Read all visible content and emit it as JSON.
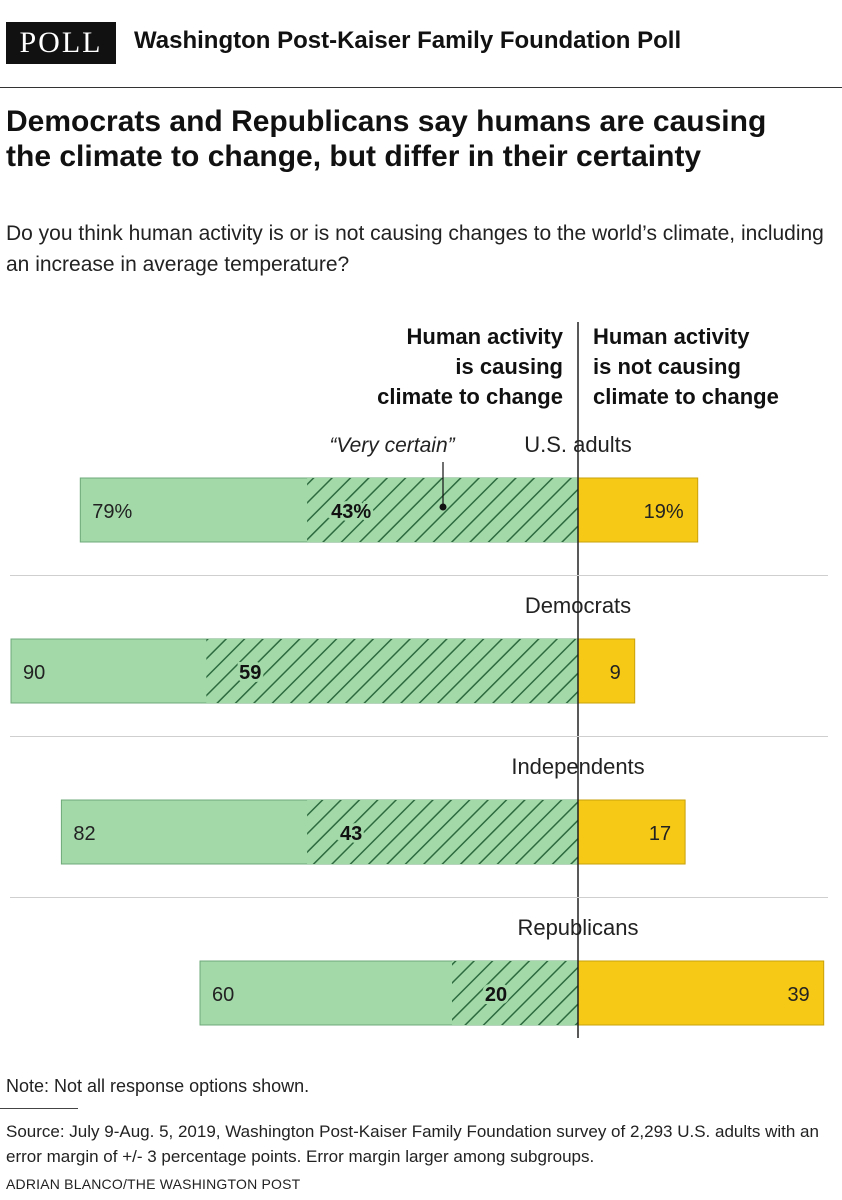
{
  "header": {
    "badge": "POLL",
    "title": "Washington Post-Kaiser Family Foundation Poll"
  },
  "headline": "Democrats and Republicans say humans are causing the climate to change, but differ in their certainty",
  "subhead": "Do you think human activity is or is not causing changes to the world’s climate, including an increase in average temperature?",
  "column_headers": {
    "left": "Human activity\nis causing\nclimate to change",
    "right": "Human activity\nis not causing\nclimate to change"
  },
  "annotation": "“Very certain”",
  "colors": {
    "causing": "#a3d9a9",
    "causing_border": "#6fa879",
    "hatch": "#2d6b3f",
    "not_causing": "#f5c915",
    "not_causing_border": "#c9a10a",
    "axis": "#222222"
  },
  "chart_data": {
    "type": "bar",
    "orientation": "horizontal-diverging",
    "categories": [
      "U.S. adults",
      "Democrats",
      "Independents",
      "Republicans"
    ],
    "series": [
      {
        "name": "Human activity is causing climate to change",
        "values": [
          79,
          90,
          82,
          60
        ],
        "labels": [
          "79%",
          "90",
          "82",
          "60"
        ]
      },
      {
        "name": "Very certain",
        "values": [
          43,
          59,
          43,
          20
        ],
        "labels": [
          "43%",
          "59",
          "43",
          "20"
        ]
      },
      {
        "name": "Human activity is not causing climate to change",
        "values": [
          19,
          9,
          17,
          39
        ],
        "labels": [
          "19%",
          "9",
          "17",
          "39"
        ]
      }
    ],
    "unit": "%"
  },
  "footer": {
    "note": "Note: Not all response options shown.",
    "source": "Source: July 9-Aug. 5, 2019, Washington Post-Kaiser Family Foundation survey of 2,293 U.S. adults with an error margin of +/- 3 percentage points. Error margin larger among subgroups.",
    "credit": "ADRIAN BLANCO/THE WASHINGTON POST"
  }
}
